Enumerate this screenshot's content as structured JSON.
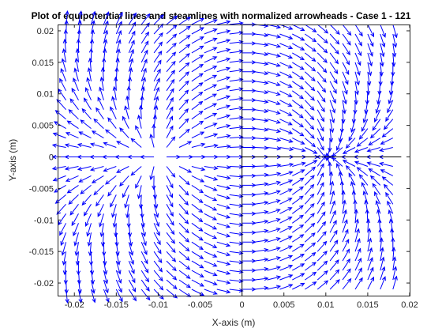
{
  "chart_data": {
    "type": "quiver",
    "title": "Plot of equipotential lines and steamlines with normalized arrowheads - Case 1 - 121",
    "xlabel": "X-axis (m)",
    "ylabel": "Y-axis (m)",
    "xlim": [
      -0.022,
      0.02
    ],
    "ylim": [
      -0.022,
      0.021
    ],
    "xticks": [
      -0.02,
      -0.015,
      -0.01,
      -0.005,
      0,
      0.005,
      0.01,
      0.015,
      0.02
    ],
    "xtick_labels": [
      "-0.02",
      "-0.015",
      "-0.01",
      "-0.005",
      "0",
      "0.005",
      "0.01",
      "0.015",
      "0.02"
    ],
    "yticks": [
      -0.02,
      -0.015,
      -0.01,
      -0.005,
      0,
      0.005,
      0.01,
      0.015,
      0.02
    ],
    "ytick_labels": [
      "-0.02",
      "-0.015",
      "-0.01",
      "-0.005",
      "0",
      "0.005",
      "0.01",
      "0.015",
      "0.02"
    ],
    "grid": false,
    "box": true,
    "sources": [
      {
        "x": -0.01,
        "y": 0,
        "role": "source"
      },
      {
        "x": 0.01,
        "y": 0,
        "role": "sink"
      }
    ],
    "grid_spacing": 0.0015,
    "x_range": [
      -0.021,
      0.019
    ],
    "y_range": [
      -0.021,
      0.021
    ],
    "arrow_color": "#0000ff",
    "reference_lines": [
      {
        "orientation": "vertical",
        "x": 0,
        "color": "#000000"
      },
      {
        "orientation": "horizontal",
        "y": 0,
        "x_from": 0,
        "x_to": 0.019,
        "color": "#000000"
      }
    ]
  }
}
